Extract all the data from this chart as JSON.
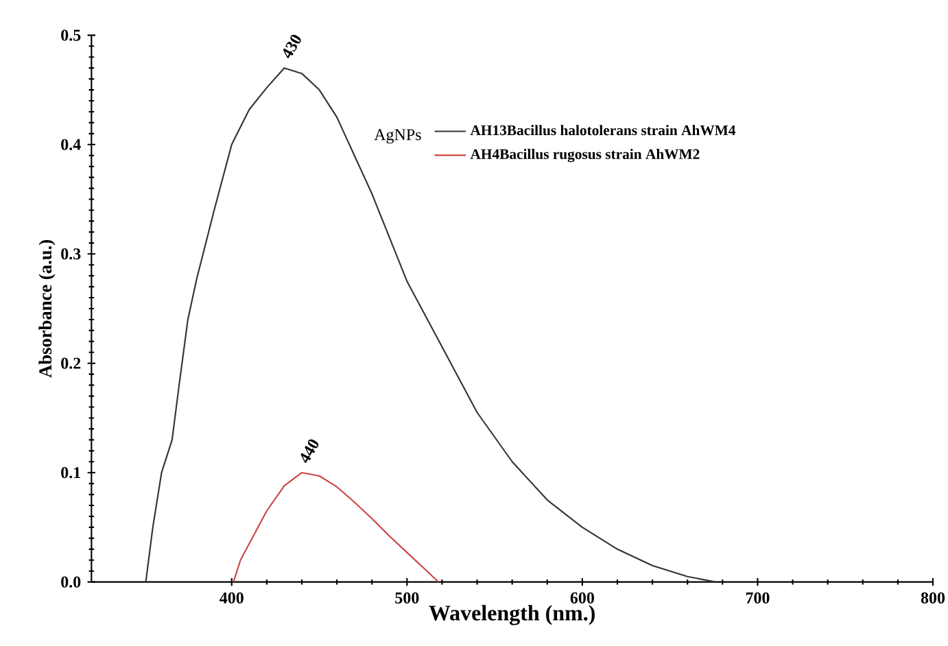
{
  "chart_data": {
    "type": "line",
    "xlabel": "Wavelength (nm.)",
    "ylabel": "Absorbance (a.u.)",
    "legend_title": "AgNPs",
    "xlim": [
      320,
      800
    ],
    "xticks": [
      400,
      500,
      600,
      700,
      800
    ],
    "ylim": [
      0,
      0.5
    ],
    "yticks": [
      {
        "value": 0,
        "label": "0.0"
      },
      {
        "value": 0.1,
        "label": "0.1"
      },
      {
        "value": 0.2,
        "label": "0.2"
      },
      {
        "value": 0.3,
        "label": "0.3"
      },
      {
        "value": 0.4,
        "label": "0.4"
      },
      {
        "value": 0.5,
        "label": "0.5"
      }
    ],
    "legend": "top right",
    "grid": false,
    "marker": "none",
    "line_style": "solid",
    "series": [
      {
        "name": "AH13Bacillus halotolerans strain AhWM4",
        "color": "#333333",
        "x": [
          351,
          355,
          360,
          366,
          370,
          375,
          380,
          390,
          400,
          410,
          420,
          430,
          440,
          450,
          460,
          470,
          480,
          490,
          500,
          520,
          540,
          560,
          580,
          600,
          620,
          640,
          660,
          676
        ],
        "values": [
          0,
          0.05,
          0.1,
          0.13,
          0.18,
          0.24,
          0.277,
          0.34,
          0.4,
          0.432,
          0.452,
          0.47,
          0.465,
          0.45,
          0.425,
          0.39,
          0.355,
          0.315,
          0.275,
          0.215,
          0.155,
          0.11,
          0.075,
          0.05,
          0.03,
          0.015,
          0.005,
          0
        ]
      },
      {
        "name": "AH4Bacillus rugosus strain AhWM2",
        "color": "#cc4444",
        "x": [
          401,
          405,
          410,
          420,
          430,
          440,
          450,
          460,
          470,
          480,
          490,
          500,
          510,
          518
        ],
        "values": [
          0,
          0.02,
          0.035,
          0.065,
          0.088,
          0.1,
          0.097,
          0.087,
          0.073,
          0.058,
          0.042,
          0.027,
          0.012,
          0
        ]
      }
    ],
    "annotations": [
      {
        "text": "430",
        "x": 430,
        "y": 0.47
      },
      {
        "text": "440",
        "x": 440,
        "y": 0.1
      }
    ]
  }
}
